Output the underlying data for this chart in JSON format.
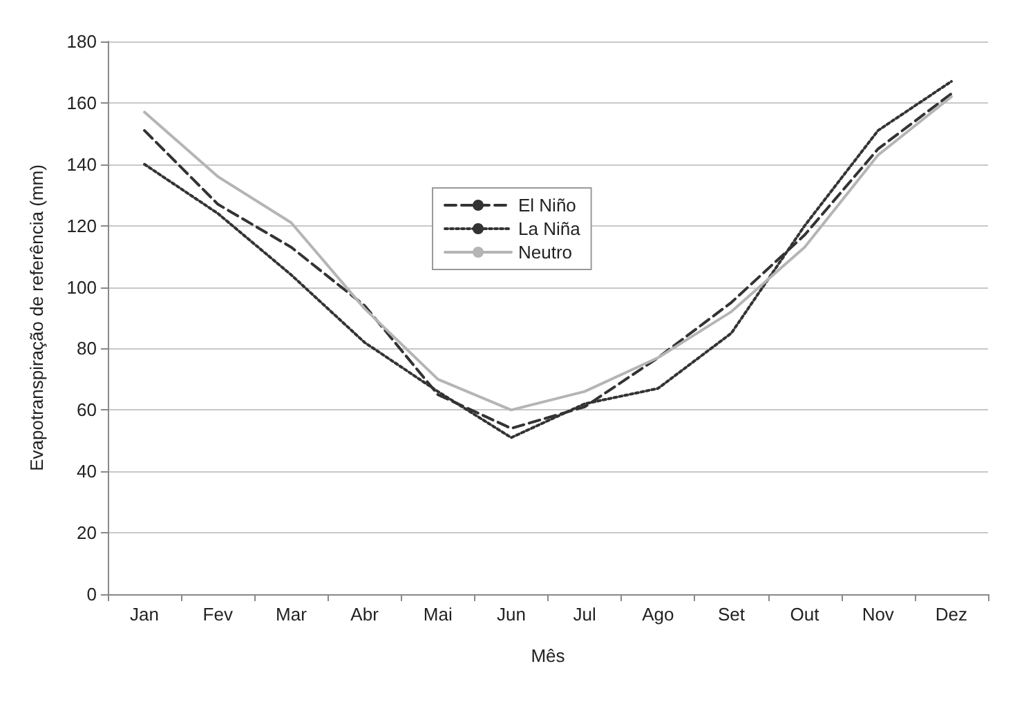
{
  "chart_data": {
    "type": "line",
    "xlabel": "Mês",
    "ylabel": "Evapotranspiração de referência (mm)",
    "categories": [
      "Jan",
      "Fev",
      "Mar",
      "Abr",
      "Mai",
      "Jun",
      "Jul",
      "Ago",
      "Set",
      "Out",
      "Nov",
      "Dez"
    ],
    "series": [
      {
        "name": "El Niño",
        "color": "#333333",
        "line_style": "dashed",
        "values": [
          151,
          127,
          113,
          94,
          65,
          54,
          61,
          77,
          95,
          117,
          145,
          163
        ]
      },
      {
        "name": "La Niña",
        "color": "#333333",
        "line_style": "dotted",
        "values": [
          140,
          124,
          104,
          82,
          66,
          51,
          62,
          67,
          85,
          120,
          151,
          167
        ]
      },
      {
        "name": "Neutro",
        "color": "#b5b5b5",
        "line_style": "solid",
        "values": [
          157,
          136,
          121,
          93,
          70,
          60,
          66,
          77,
          92,
          113,
          143,
          162
        ]
      }
    ],
    "ylim": [
      0,
      180
    ],
    "yticks": [
      0,
      20,
      40,
      60,
      80,
      100,
      120,
      140,
      160,
      180
    ],
    "grid": "y",
    "legend": "top",
    "marker": "none"
  }
}
